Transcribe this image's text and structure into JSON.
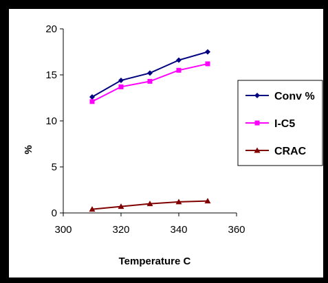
{
  "chart_data": {
    "type": "line",
    "title": "",
    "xlabel": "Temperature C",
    "ylabel": "%",
    "xlim": [
      300,
      360
    ],
    "ylim": [
      0,
      20
    ],
    "x_ticks": [
      "300",
      "320",
      "340",
      "360"
    ],
    "y_ticks": [
      "0",
      "5",
      "10",
      "15",
      "20"
    ],
    "grid": false,
    "legend_position": "right",
    "x": [
      310,
      320,
      330,
      340,
      350
    ],
    "series": [
      {
        "name": "Conv %",
        "color": "#000080",
        "marker": "diamond",
        "values": [
          12.6,
          14.4,
          15.2,
          16.6,
          17.5
        ]
      },
      {
        "name": "I-C5",
        "color": "#ff00ff",
        "marker": "square",
        "values": [
          12.1,
          13.7,
          14.3,
          15.5,
          16.2
        ]
      },
      {
        "name": "CRAC",
        "color": "#800000",
        "marker": "triangle",
        "values": [
          0.4,
          0.7,
          1.0,
          1.2,
          1.3
        ]
      }
    ]
  }
}
